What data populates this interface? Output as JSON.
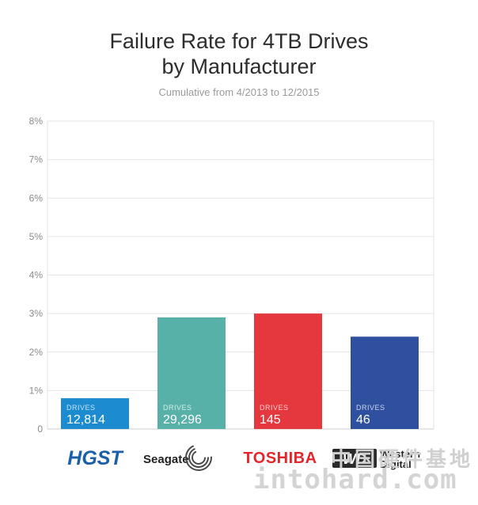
{
  "chart_data": {
    "type": "bar",
    "title_line1": "Failure Rate for 4TB Drives",
    "title_line2": "by Manufacturer",
    "subtitle": "Cumulative from 4/2013 to 12/2015",
    "categories": [
      "HGST",
      "Seagate",
      "TOSHIBA",
      "Western Digital"
    ],
    "values": [
      0.8,
      2.9,
      3.0,
      2.4
    ],
    "bar_colors": [
      "#1c8bd0",
      "#57b1a9",
      "#e4383e",
      "#2f4f9f"
    ],
    "drive_label": "DRIVES",
    "drive_counts": [
      "12,814",
      "29,296",
      "145",
      "46"
    ],
    "y_ticks": [
      "0",
      "1%",
      "2%",
      "3%",
      "4%",
      "5%",
      "6%",
      "7%",
      "8%"
    ],
    "ylim": [
      0,
      8
    ],
    "grid": true,
    "logos": {
      "hgst": "HGST",
      "seagate": "Seagate",
      "toshiba": "TOSHIBA",
      "wd_line1": "Western",
      "wd_line2": "Digital",
      "wd_badge": "WD"
    }
  },
  "watermark": {
    "domain": "intohard.com",
    "cn": "中国硬件基地"
  }
}
